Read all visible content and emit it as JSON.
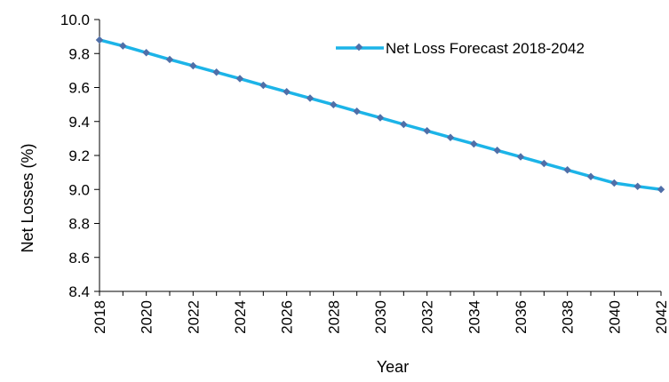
{
  "chart_data": {
    "type": "line",
    "title": "",
    "xlabel": "Year",
    "ylabel": "Net Losses (%)",
    "ylim": [
      8.4,
      10.0
    ],
    "yticks": [
      "8.4",
      "8.6",
      "8.8",
      "9.0",
      "9.2",
      "9.4",
      "9.6",
      "9.8",
      "10.0"
    ],
    "xticks": [
      "2018",
      "2020",
      "2022",
      "2024",
      "2026",
      "2028",
      "2030",
      "2032",
      "2034",
      "2036",
      "2038",
      "2040",
      "2042"
    ],
    "grid": false,
    "legend_position": "top-right",
    "series": [
      {
        "name": "Net Loss Forecast 2018-2042",
        "color": "#1CB4E8",
        "marker_color": "#4F6FA8",
        "x": [
          2018,
          2019,
          2020,
          2021,
          2022,
          2023,
          2024,
          2025,
          2026,
          2027,
          2028,
          2029,
          2030,
          2031,
          2032,
          2033,
          2034,
          2035,
          2036,
          2037,
          2038,
          2039,
          2040,
          2041,
          2042
        ],
        "values": [
          9.88,
          9.845,
          9.805,
          9.765,
          9.728,
          9.69,
          9.652,
          9.613,
          9.575,
          9.537,
          9.499,
          9.46,
          9.422,
          9.383,
          9.345,
          9.306,
          9.268,
          9.23,
          9.192,
          9.153,
          9.115,
          9.076,
          9.038,
          9.018,
          9.0
        ]
      }
    ]
  }
}
